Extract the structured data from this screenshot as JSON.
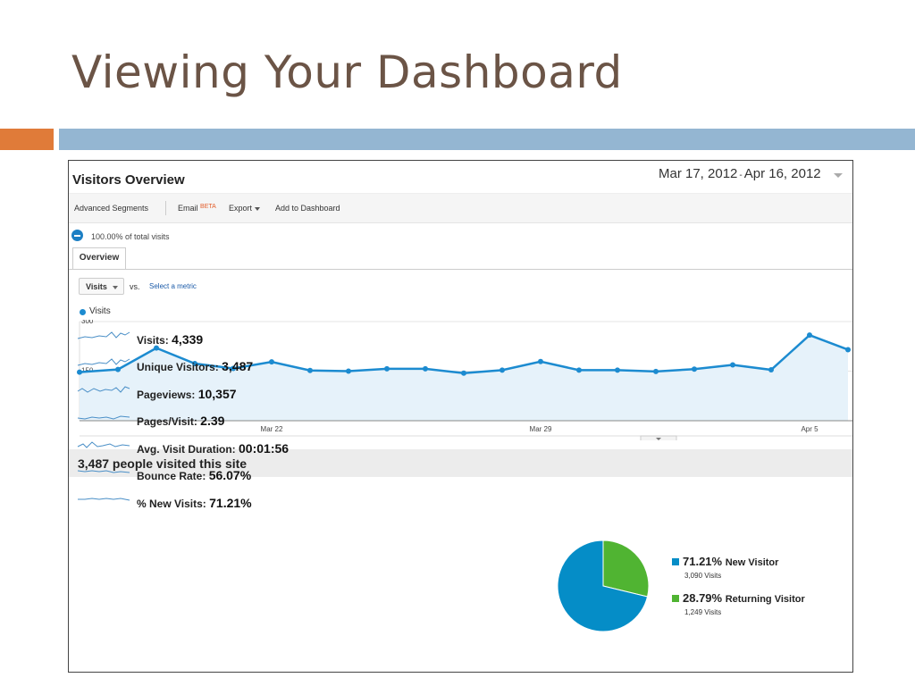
{
  "slide": {
    "title": "Viewing Your Dashboard"
  },
  "header": {
    "title": "Visitors Overview",
    "date_start": "Mar 17, 2012",
    "date_sep": "-",
    "date_end": "Apr 16, 2012"
  },
  "toolbar": {
    "advanced_segments": "Advanced Segments",
    "email": "Email",
    "email_badge": "BETA",
    "export": "Export",
    "add_to_dashboard": "Add to Dashboard"
  },
  "segment": {
    "text": "100.00% of total visits"
  },
  "tabs": [
    {
      "label": "Overview"
    }
  ],
  "metric": {
    "selected": "Visits",
    "vs": "vs.",
    "select_metric": "Select a metric"
  },
  "chart_data": {
    "type": "area",
    "series": [
      {
        "name": "Visits",
        "color": "#1c8bd0",
        "values": [
          147,
          155,
          220,
          173,
          158,
          178,
          152,
          150,
          157,
          157,
          144,
          153,
          179,
          153,
          153,
          149,
          156,
          169,
          154,
          259,
          215
        ]
      }
    ],
    "yticks": [
      "300",
      "150"
    ],
    "ylim": [
      0,
      300
    ],
    "xticks": [
      {
        "label": "Mar 22",
        "index": 5
      },
      {
        "label": "Mar 29",
        "index": 12
      },
      {
        "label": "Apr 5",
        "index": 19
      }
    ],
    "grid": true
  },
  "summary": {
    "text": "3,487 people visited this site"
  },
  "stats": [
    {
      "label": "Visits",
      "value": "4,339"
    },
    {
      "label": "Unique Visitors",
      "value": "3,487"
    },
    {
      "label": "Pageviews",
      "value": "10,357"
    },
    {
      "label": "Pages/Visit",
      "value": "2.39"
    },
    {
      "label": "Avg. Visit Duration",
      "value": "00:01:56"
    },
    {
      "label": "Bounce Rate",
      "value": "56.07%"
    },
    {
      "label": "% New Visits",
      "value": "71.21%"
    }
  ],
  "pie": {
    "type": "pie",
    "slices": [
      {
        "pct": "71.21%",
        "value": 71.21,
        "name": "New Visitor",
        "visits": "3,090 Visits",
        "color": "#058dc7"
      },
      {
        "pct": "28.79%",
        "value": 28.79,
        "name": "Returning Visitor",
        "visits": "1,249 Visits",
        "color": "#50b432"
      }
    ]
  }
}
